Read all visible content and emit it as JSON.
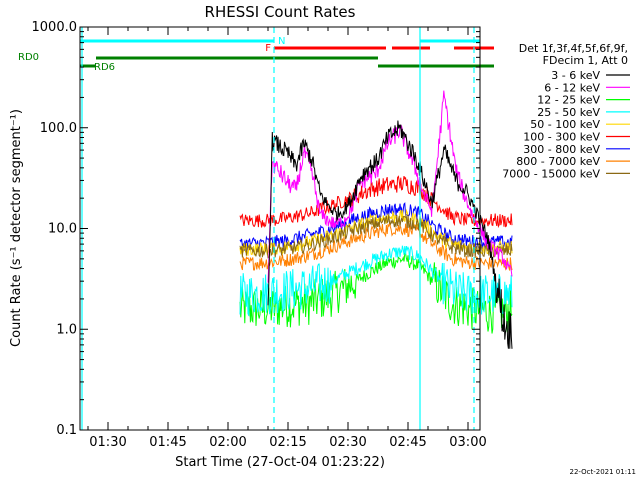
{
  "chart_data": {
    "type": "line",
    "title": "RHESSI Count Rates",
    "xlabel": "Start Time (27-Oct-04 01:23:22)",
    "ylabel": "Count Rate (s⁻¹ detector segment⁻¹)",
    "yscale": "log",
    "ylim": [
      0.1,
      1000
    ],
    "xlim_minutes_after_0130": [
      -7,
      93
    ],
    "y_ticks": [
      "0.1",
      "1.0",
      "10.0",
      "100.0",
      "1000.0"
    ],
    "x_ticks": [
      "01:30",
      "01:45",
      "02:00",
      "02:15",
      "02:30",
      "02:45",
      "03:00"
    ],
    "legend": {
      "placement": "right",
      "header": [
        "Det 1f,3f,4f,5f,6f,9f,",
        "FDecim 1, Att 0"
      ]
    },
    "series": [
      {
        "name": "3 - 6 keV",
        "color": "#000000",
        "t": [
          40,
          41,
          43,
          45,
          47,
          49,
          51,
          53,
          55,
          57,
          59,
          61,
          63,
          65,
          67,
          70,
          73,
          75,
          77,
          79,
          81,
          84,
          87,
          89,
          91,
          93,
          95,
          97,
          99,
          100,
          101
        ],
        "y": [
          1.2,
          75,
          65,
          55,
          42,
          70,
          48,
          22,
          17,
          14,
          15,
          20,
          32,
          40,
          45,
          80,
          100,
          70,
          50,
          30,
          18,
          60,
          30,
          25,
          18,
          12,
          8,
          3,
          1.2,
          1.0,
          1.0
        ]
      },
      {
        "name": "6 - 12 keV",
        "color": "#ff00ff",
        "t": [
          40,
          41,
          43,
          45,
          47,
          49,
          51,
          53,
          55,
          57,
          59,
          61,
          63,
          65,
          67,
          70,
          73,
          75,
          77,
          79,
          81,
          84,
          87,
          89,
          91,
          93,
          95,
          97,
          99,
          100,
          101
        ],
        "y": [
          3.0,
          45,
          36,
          28,
          24,
          58,
          35,
          14,
          12,
          11,
          12,
          16,
          28,
          32,
          35,
          70,
          95,
          60,
          38,
          22,
          15,
          210,
          38,
          22,
          14,
          10,
          7,
          6,
          5,
          4,
          3.5
        ]
      },
      {
        "name": "12 - 25 keV",
        "color": "#00ff00",
        "t": [
          33,
          40,
          44,
          50,
          56,
          62,
          66,
          70,
          74,
          78,
          82,
          86,
          90,
          95,
          101
        ],
        "y": [
          1.6,
          1.6,
          1.7,
          1.8,
          2.2,
          3.0,
          3.8,
          4.6,
          5.0,
          4.2,
          2.8,
          1.8,
          1.6,
          1.5,
          1.5
        ]
      },
      {
        "name": "25 - 50 keV",
        "color": "#00ffff",
        "t": [
          33,
          40,
          44,
          50,
          56,
          62,
          66,
          70,
          74,
          78,
          82,
          86,
          90,
          95,
          101
        ],
        "y": [
          2.2,
          2.3,
          2.4,
          2.6,
          3.0,
          4.0,
          4.8,
          5.6,
          6.0,
          5.2,
          3.4,
          2.4,
          2.2,
          2.2,
          2.2
        ]
      },
      {
        "name": "50 - 100 keV",
        "color": "#ffd700",
        "t": [
          33,
          40,
          44,
          50,
          56,
          62,
          66,
          70,
          74,
          78,
          82,
          86,
          90,
          95,
          101
        ],
        "y": [
          6.2,
          6.3,
          6.5,
          7.2,
          8.5,
          10.5,
          12,
          13,
          13,
          12,
          8.5,
          7.0,
          6.5,
          6.4,
          6.5
        ]
      },
      {
        "name": "100 - 300 keV",
        "color": "#ff0000",
        "t": [
          33,
          40,
          44,
          50,
          56,
          62,
          66,
          70,
          74,
          78,
          82,
          86,
          90,
          95,
          101
        ],
        "y": [
          12,
          12,
          12.5,
          14,
          17,
          21,
          25,
          27,
          28,
          25,
          18,
          13,
          12,
          12,
          12
        ]
      },
      {
        "name": "300 - 800 keV",
        "color": "#0000ff",
        "t": [
          33,
          40,
          44,
          50,
          56,
          62,
          66,
          70,
          74,
          78,
          82,
          86,
          90,
          95,
          101
        ],
        "y": [
          7.0,
          7.2,
          7.5,
          8.5,
          10,
          12.5,
          14,
          15.5,
          15.5,
          14,
          10,
          8.0,
          7.5,
          7.3,
          7.3
        ]
      },
      {
        "name": "800 - 7000 keV",
        "color": "#ff8000",
        "t": [
          33,
          40,
          44,
          50,
          56,
          62,
          66,
          70,
          74,
          78,
          82,
          86,
          90,
          95,
          101
        ],
        "y": [
          4.5,
          4.6,
          4.8,
          5.4,
          6.5,
          8.0,
          9.0,
          10,
          10,
          9.0,
          6.5,
          5.0,
          4.6,
          4.5,
          4.5
        ]
      },
      {
        "name": "7000 - 15000 keV",
        "color": "#8b6914",
        "t": [
          33,
          40,
          44,
          50,
          56,
          62,
          66,
          70,
          74,
          78,
          82,
          86,
          90,
          95,
          101
        ],
        "y": [
          6.0,
          6.0,
          6.2,
          6.8,
          8.0,
          9.8,
          11,
          12,
          12,
          11,
          8.0,
          6.5,
          6.0,
          6.0,
          6.0
        ]
      }
    ],
    "vertical_lines": [
      {
        "t": -6.5,
        "color": "#00ffff",
        "style": "solid"
      },
      {
        "t": 41.5,
        "color": "#00ffff",
        "style": "dashed"
      },
      {
        "t": 78,
        "color": "#00ffff",
        "style": "solid"
      },
      {
        "t": 91.5,
        "color": "#00ffff",
        "style": "dashed"
      }
    ],
    "flags": [
      {
        "label": "N",
        "color": "#00ffff",
        "segments": [
          [
            -7,
            41.5
          ],
          [
            78,
            93
          ]
        ]
      },
      {
        "label": "F",
        "color": "#ff0000",
        "segments": [
          [
            41.5,
            69.5
          ],
          [
            71,
            80.5
          ],
          [
            86.5,
            96.5
          ]
        ]
      },
      {
        "label": "RD0",
        "color": "#008000",
        "segments": [
          [
            -3,
            67.5
          ]
        ]
      },
      {
        "label": "RD6",
        "color": "#008000",
        "segments": [
          [
            -7,
            -3
          ],
          [
            67.5,
            89.5
          ],
          [
            89.5,
            96.5
          ]
        ]
      }
    ]
  },
  "footer_timestamp": "22-Oct-2021 01:11"
}
